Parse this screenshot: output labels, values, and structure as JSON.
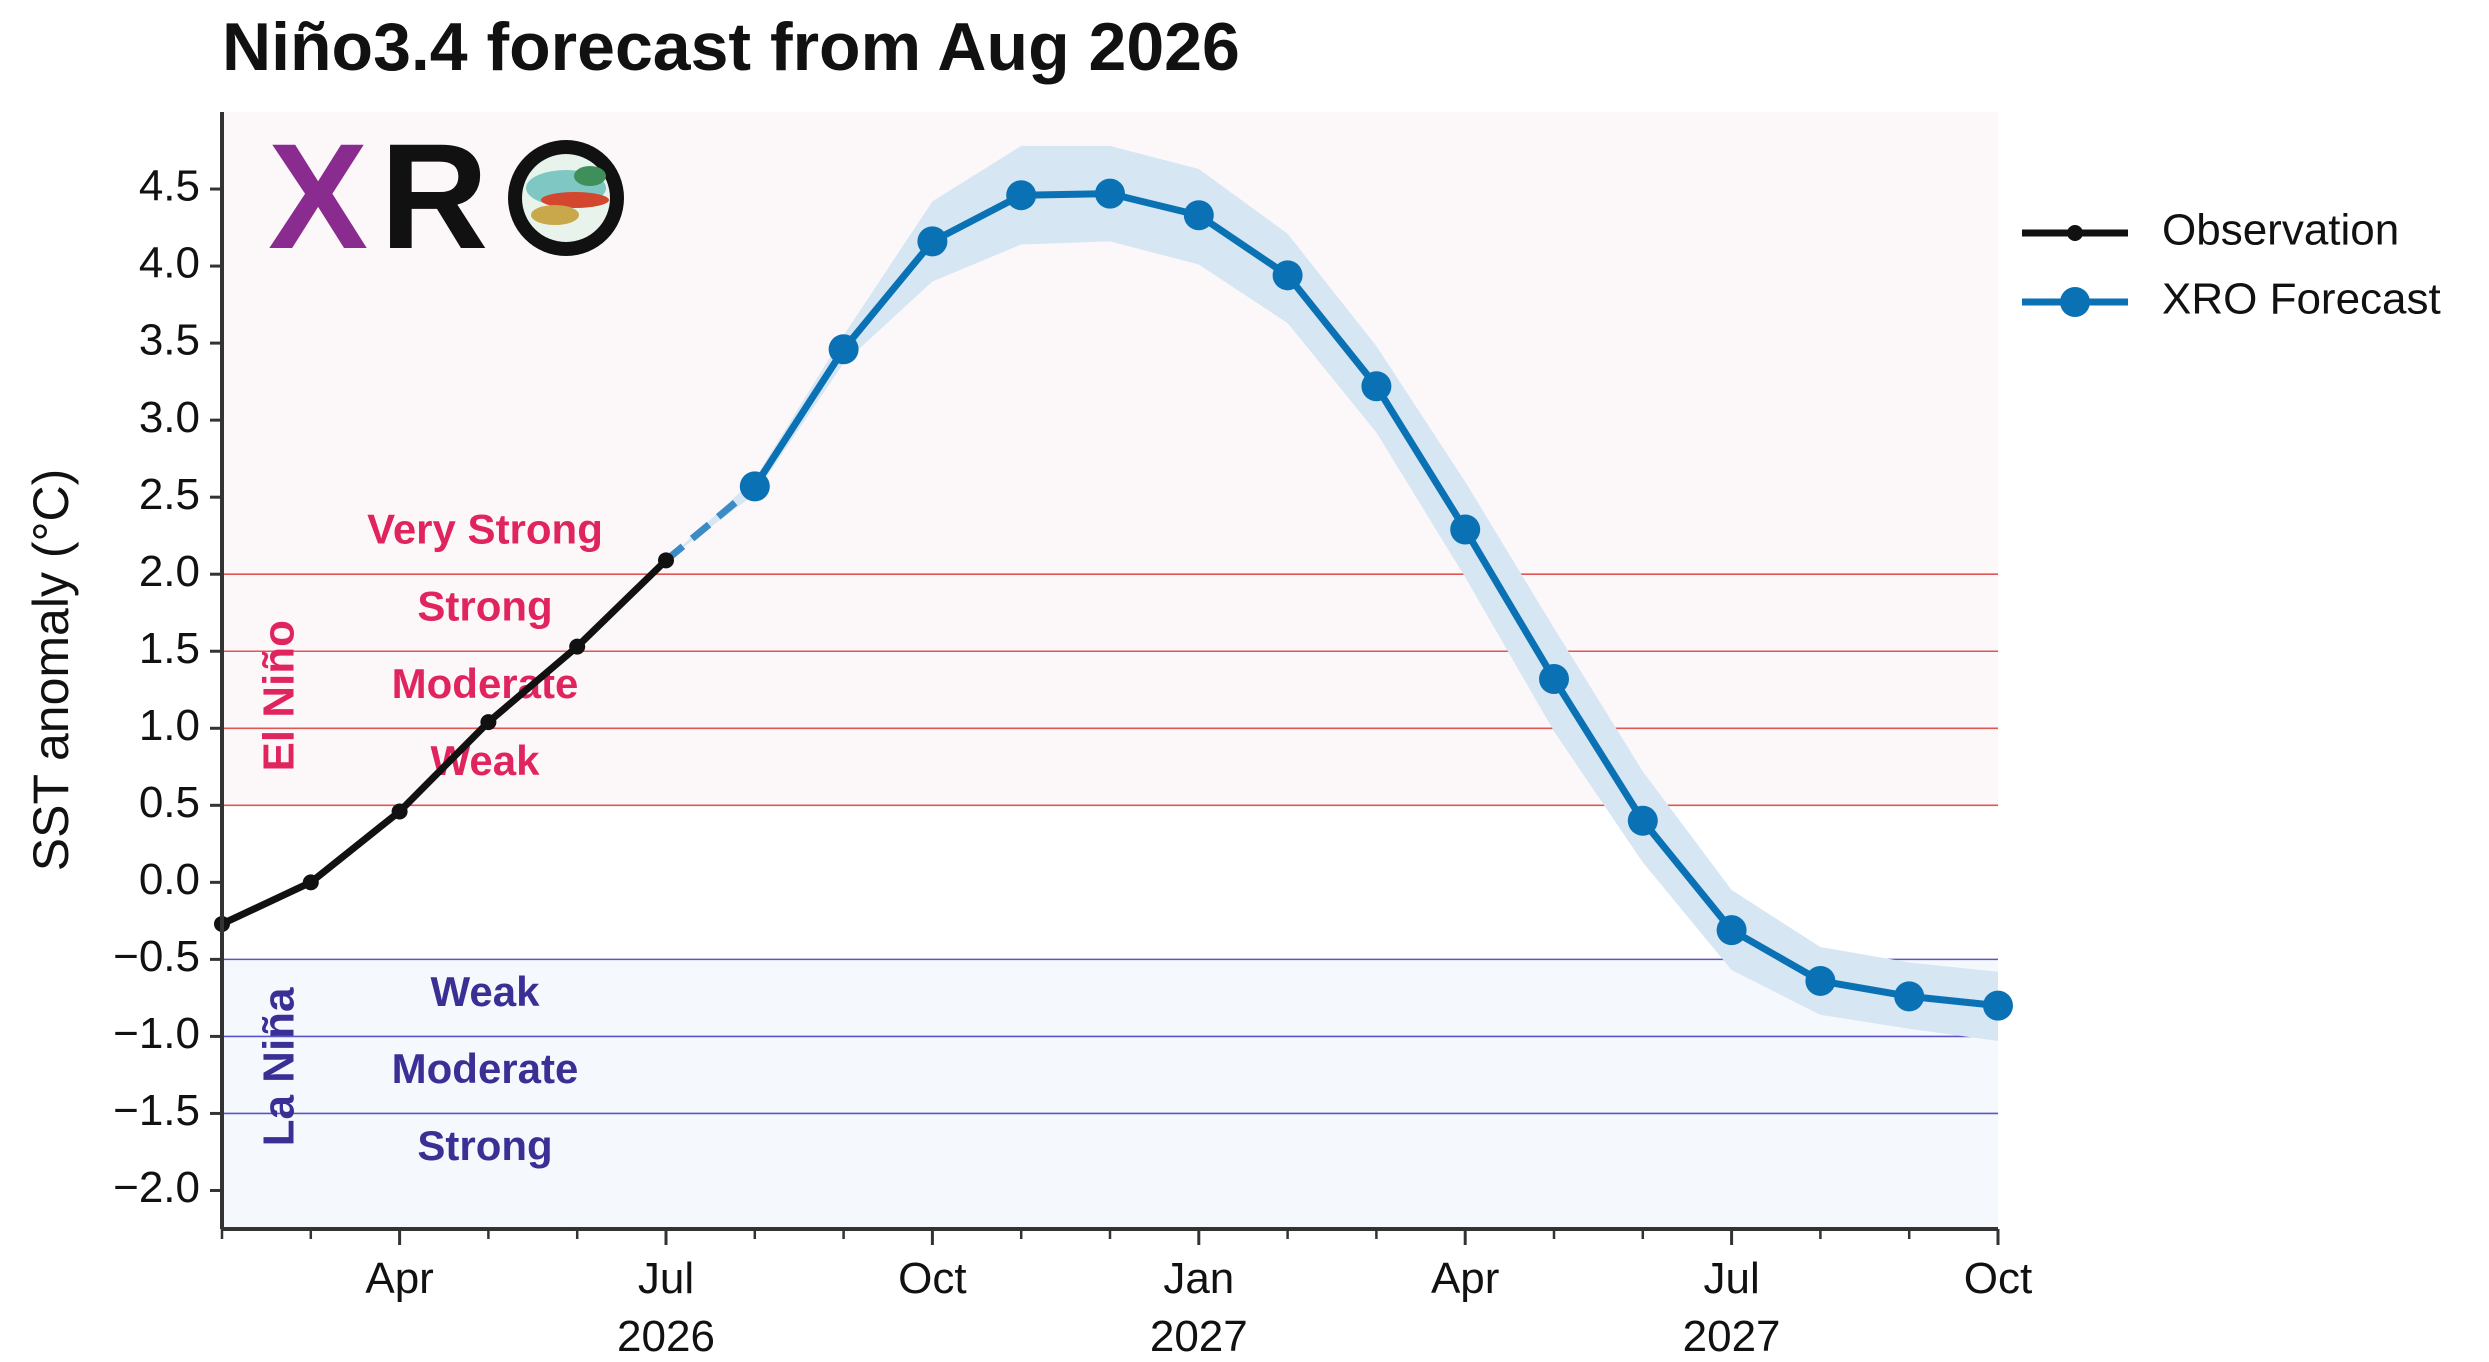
{
  "chart_data": {
    "type": "line",
    "title": "Niño3.4 forecast from Aug 2026",
    "ylabel": "SST anomaly (°C)",
    "xlabel": "",
    "xlim": [
      "2026-02",
      "2027-10"
    ],
    "ylim": [
      -2.25,
      5.0
    ],
    "yticks": [
      4.5,
      4.0,
      3.5,
      3.0,
      2.5,
      2.0,
      1.5,
      1.0,
      0.5,
      0.0,
      -0.5,
      -1.0,
      -1.5,
      -2.0
    ],
    "ytick_labels": [
      "4.5",
      "4.0",
      "3.5",
      "3.0",
      "2.5",
      "2.0",
      "1.5",
      "1.0",
      "0.5",
      "0.0",
      "−0.5",
      "−1.0",
      "−1.5",
      "−2.0"
    ],
    "xticks": [
      {
        "x": "2026-04",
        "label": "Apr",
        "year": ""
      },
      {
        "x": "2026-07",
        "label": "Jul",
        "year": "2026"
      },
      {
        "x": "2026-10",
        "label": "Oct",
        "year": ""
      },
      {
        "x": "2027-01",
        "label": "Jan",
        "year": "2027"
      },
      {
        "x": "2027-04",
        "label": "Apr",
        "year": ""
      },
      {
        "x": "2027-07",
        "label": "Jul",
        "year": "2027"
      },
      {
        "x": "2027-10",
        "label": "Oct",
        "year": ""
      }
    ],
    "series": [
      {
        "name": "Observation",
        "color": "#111111",
        "x": [
          "2026-02",
          "2026-03",
          "2026-04",
          "2026-05",
          "2026-06",
          "2026-07"
        ],
        "y": [
          -0.27,
          0.0,
          0.46,
          1.04,
          1.53,
          2.09
        ]
      },
      {
        "name": "XRO Forecast",
        "color": "#0a72b4",
        "x": [
          "2026-08",
          "2026-09",
          "2026-10",
          "2026-11",
          "2026-12",
          "2027-01",
          "2027-02",
          "2027-03",
          "2027-04",
          "2027-05",
          "2027-06",
          "2027-07",
          "2027-08",
          "2027-09",
          "2027-10"
        ],
        "y": [
          2.57,
          3.46,
          4.16,
          4.46,
          4.47,
          4.33,
          3.94,
          3.22,
          2.29,
          1.32,
          0.4,
          -0.31,
          -0.64,
          -0.74,
          -0.8
        ],
        "lower": [
          2.52,
          3.37,
          3.9,
          4.14,
          4.16,
          4.01,
          3.63,
          2.92,
          1.98,
          0.98,
          0.13,
          -0.57,
          -0.86,
          -0.95,
          -1.03
        ],
        "upper": [
          2.62,
          3.55,
          4.42,
          4.78,
          4.78,
          4.63,
          4.21,
          3.48,
          2.6,
          1.65,
          0.72,
          -0.05,
          -0.42,
          -0.52,
          -0.58
        ]
      }
    ],
    "legend_position": "outside-right",
    "grid": false,
    "thresholds": {
      "el_nino": [
        0.5,
        1.0,
        1.5,
        2.0
      ],
      "la_nina": [
        -0.5,
        -1.0,
        -1.5
      ]
    },
    "el_nino_label": "El Niño",
    "la_nina_label": "La Niña",
    "el_nino_categories": [
      {
        "label": "Very Strong",
        "y": 2.27
      },
      {
        "label": "Strong",
        "y": 1.77
      },
      {
        "label": "Moderate",
        "y": 1.27
      },
      {
        "label": "Weak",
        "y": 0.77
      }
    ],
    "la_nina_categories": [
      {
        "label": "Weak",
        "y": -0.73
      },
      {
        "label": "Moderate",
        "y": -1.23
      },
      {
        "label": "Strong",
        "y": -1.73
      }
    ],
    "colors": {
      "el_nino_text": "#e0245e",
      "la_nina_text": "#3a2f94",
      "el_nino_line": "#e05555",
      "la_nina_line": "#5a56c8",
      "el_nino_bg": "#fcf8fa",
      "la_nina_bg": "#f5f9fd",
      "band": "#d6e6f2"
    },
    "logo": {
      "letters": [
        "X",
        "R"
      ],
      "colors": [
        "#8a2c8f",
        "#111111"
      ]
    }
  }
}
